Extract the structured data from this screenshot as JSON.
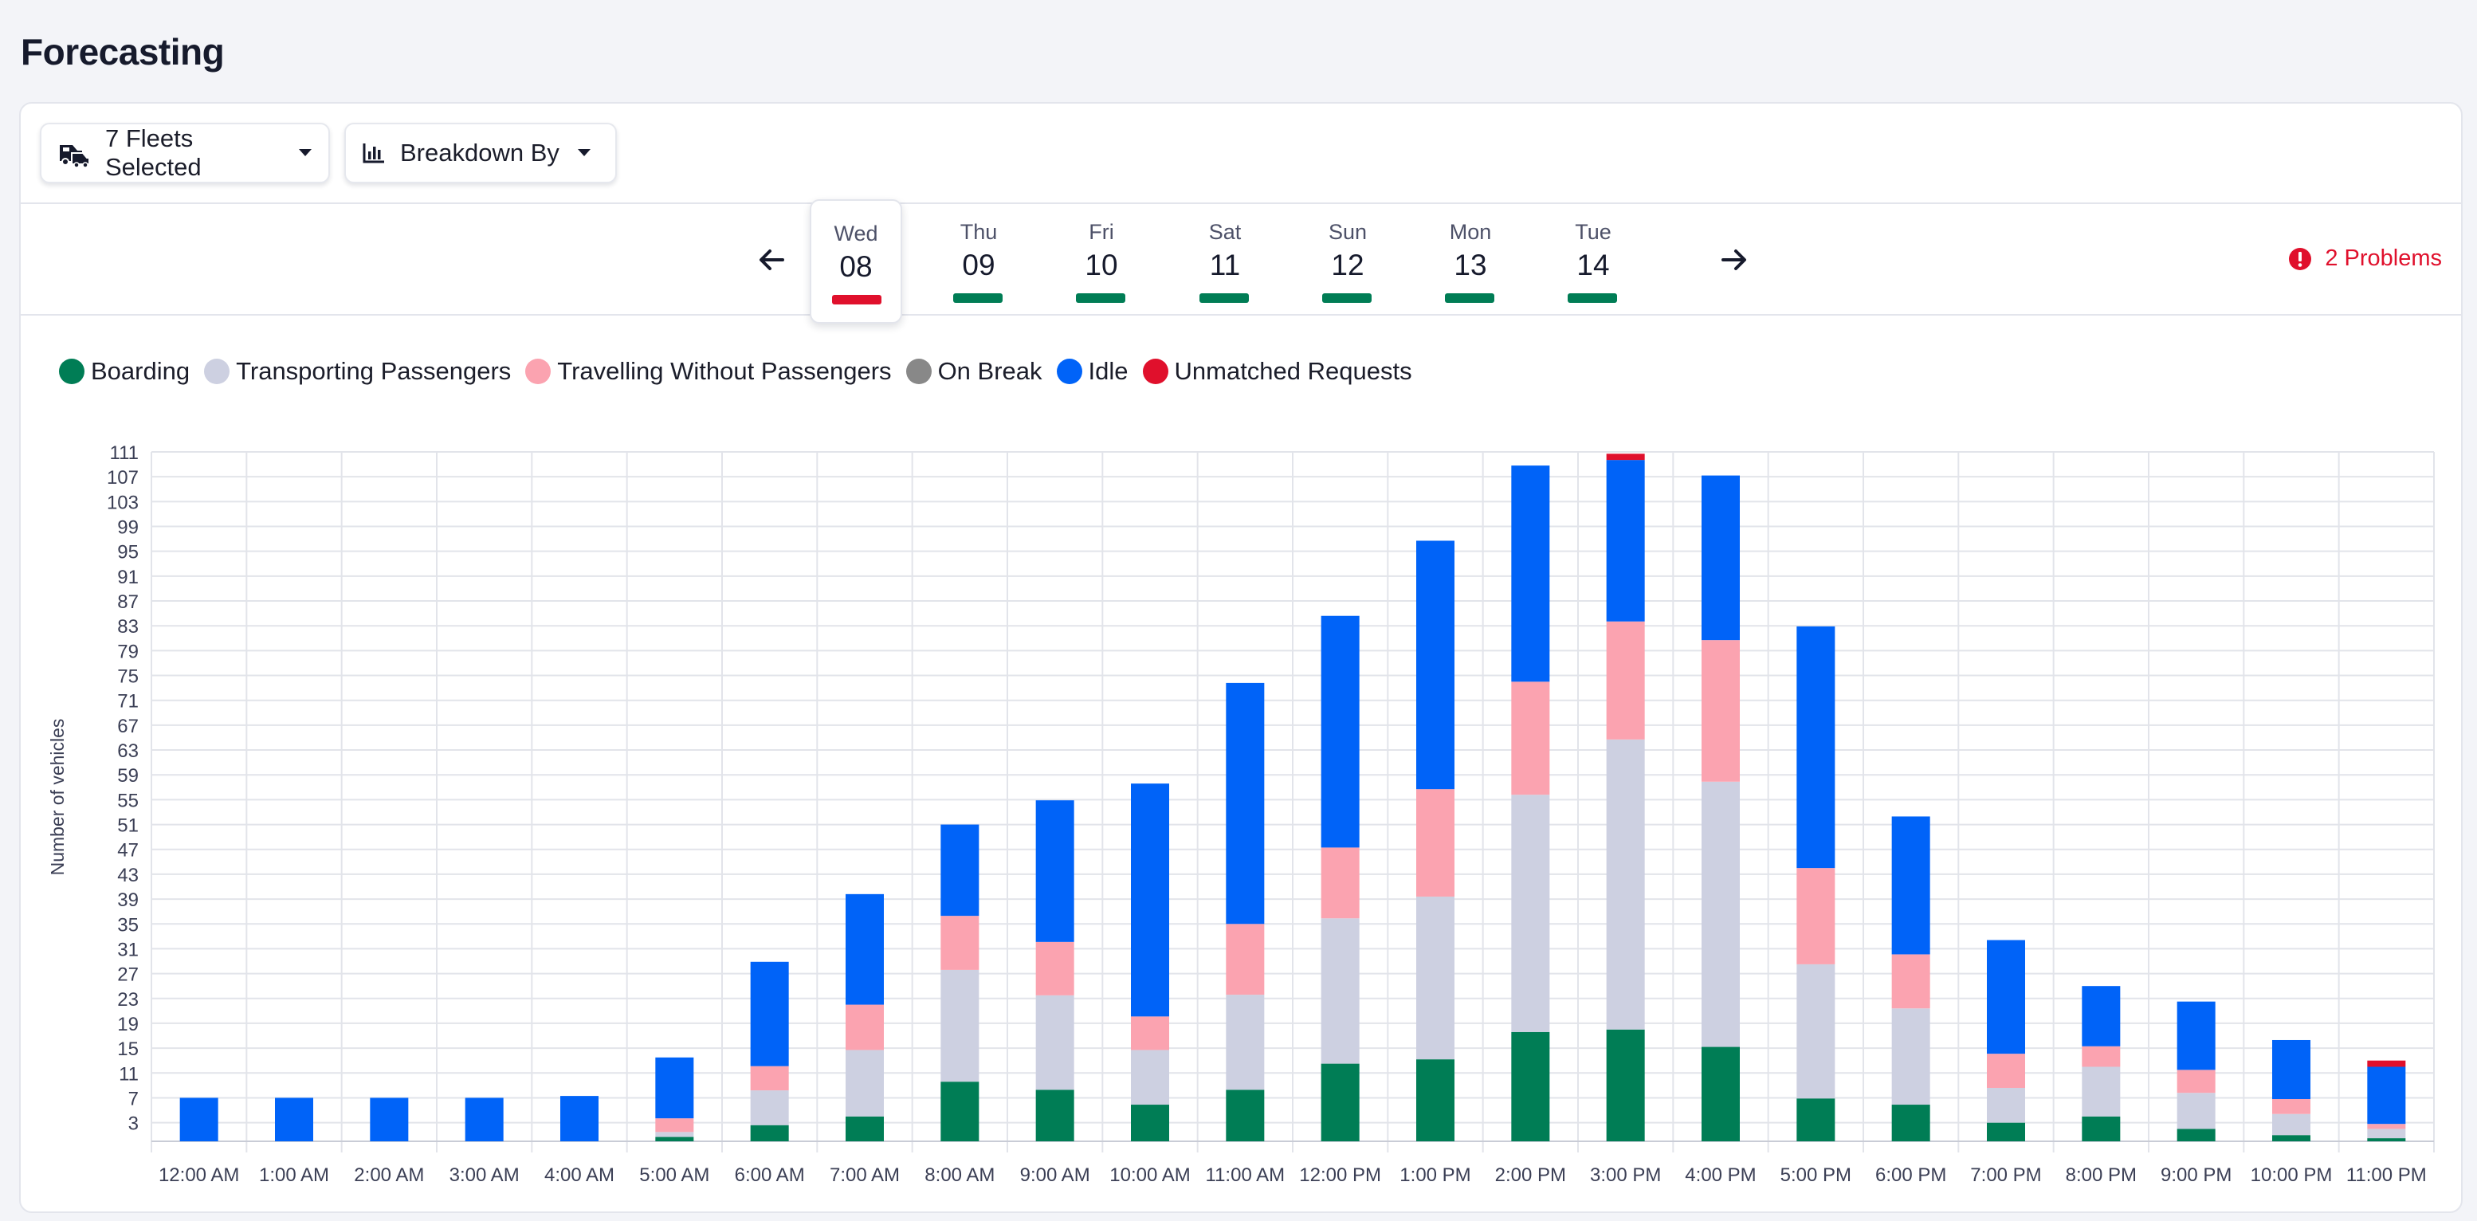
{
  "page": {
    "title": "Forecasting"
  },
  "toolbar": {
    "fleets_label": "7 Fleets Selected",
    "breakdown_label": "Breakdown By"
  },
  "days": [
    {
      "name": "Wed",
      "num": "08",
      "status": "problem",
      "selected": true
    },
    {
      "name": "Thu",
      "num": "09",
      "status": "ok",
      "selected": false
    },
    {
      "name": "Fri",
      "num": "10",
      "status": "ok",
      "selected": false
    },
    {
      "name": "Sat",
      "num": "11",
      "status": "ok",
      "selected": false
    },
    {
      "name": "Sun",
      "num": "12",
      "status": "ok",
      "selected": false
    },
    {
      "name": "Mon",
      "num": "13",
      "status": "ok",
      "selected": false
    },
    {
      "name": "Tue",
      "num": "14",
      "status": "ok",
      "selected": false
    }
  ],
  "problems_label": "2 Problems",
  "colors": {
    "boarding": "#007d55",
    "transporting": "#cdd0e1",
    "travelling_empty": "#fba3b0",
    "on_break": "#888888",
    "idle": "#0063f8",
    "unmatched": "#e0102c",
    "ok_status": "#007d55",
    "problem_status": "#e0102c"
  },
  "chart_data": {
    "type": "bar",
    "stacked": true,
    "title": "",
    "xlabel": "",
    "ylabel": "Number of vehicles",
    "ylim": [
      0,
      111
    ],
    "yticks": [
      3,
      7,
      11,
      15,
      19,
      23,
      27,
      31,
      35,
      39,
      43,
      47,
      51,
      55,
      59,
      63,
      67,
      71,
      75,
      79,
      83,
      87,
      91,
      95,
      99,
      103,
      107,
      111
    ],
    "grid": true,
    "legend_position": "top-left",
    "categories": [
      "12:00 AM",
      "1:00 AM",
      "2:00 AM",
      "3:00 AM",
      "4:00 AM",
      "5:00 AM",
      "6:00 AM",
      "7:00 AM",
      "8:00 AM",
      "9:00 AM",
      "10:00 AM",
      "11:00 AM",
      "12:00 PM",
      "1:00 PM",
      "2:00 PM",
      "3:00 PM",
      "4:00 PM",
      "5:00 PM",
      "6:00 PM",
      "7:00 PM",
      "8:00 PM",
      "9:00 PM",
      "10:00 PM",
      "11:00 PM"
    ],
    "series": [
      {
        "name": "Boarding",
        "color": "#007d55",
        "values": [
          0,
          0,
          0,
          0,
          0,
          0.7,
          2.6,
          4,
          9.6,
          8.3,
          5.9,
          8.3,
          12.5,
          13.2,
          17.6,
          18,
          15.2,
          6.9,
          5.9,
          3,
          4,
          2,
          1,
          0.5
        ]
      },
      {
        "name": "Transporting Passengers",
        "color": "#cdd0e1",
        "values": [
          0,
          0,
          0,
          0,
          0,
          0.8,
          5.6,
          10.7,
          18,
          15.2,
          8.8,
          15.3,
          23.4,
          26.2,
          38.2,
          46.7,
          42.7,
          21.6,
          15.5,
          5.6,
          8,
          5.8,
          3.4,
          1.5
        ]
      },
      {
        "name": "Travelling Without Passengers",
        "color": "#fba3b0",
        "values": [
          0,
          0,
          0,
          0,
          0,
          2.2,
          3.9,
          7.3,
          8.7,
          8.6,
          5.4,
          11.4,
          11.4,
          17.3,
          18.2,
          19,
          22.8,
          15.5,
          8.7,
          5.5,
          3.3,
          3.7,
          2.4,
          0.8
        ]
      },
      {
        "name": "On Break",
        "color": "#888888",
        "values": [
          0,
          0,
          0,
          0,
          0,
          0,
          0,
          0,
          0,
          0,
          0,
          0,
          0,
          0,
          0,
          0,
          0,
          0,
          0,
          0,
          0,
          0,
          0,
          0
        ]
      },
      {
        "name": "Idle",
        "color": "#0063f8",
        "values": [
          7,
          7,
          7,
          7,
          7.3,
          9.8,
          16.8,
          17.8,
          14.7,
          22.8,
          37.5,
          38.8,
          37.3,
          40,
          34.8,
          26,
          26.5,
          38.9,
          22.2,
          18.3,
          9.7,
          11,
          9.5,
          9.2
        ]
      },
      {
        "name": "Unmatched Requests",
        "color": "#e0102c",
        "values": [
          0,
          0,
          0,
          0,
          0,
          0,
          0,
          0,
          0,
          0,
          0,
          0,
          0,
          0,
          0,
          1,
          0,
          0,
          0,
          0,
          0,
          0,
          0,
          1
        ]
      }
    ]
  }
}
